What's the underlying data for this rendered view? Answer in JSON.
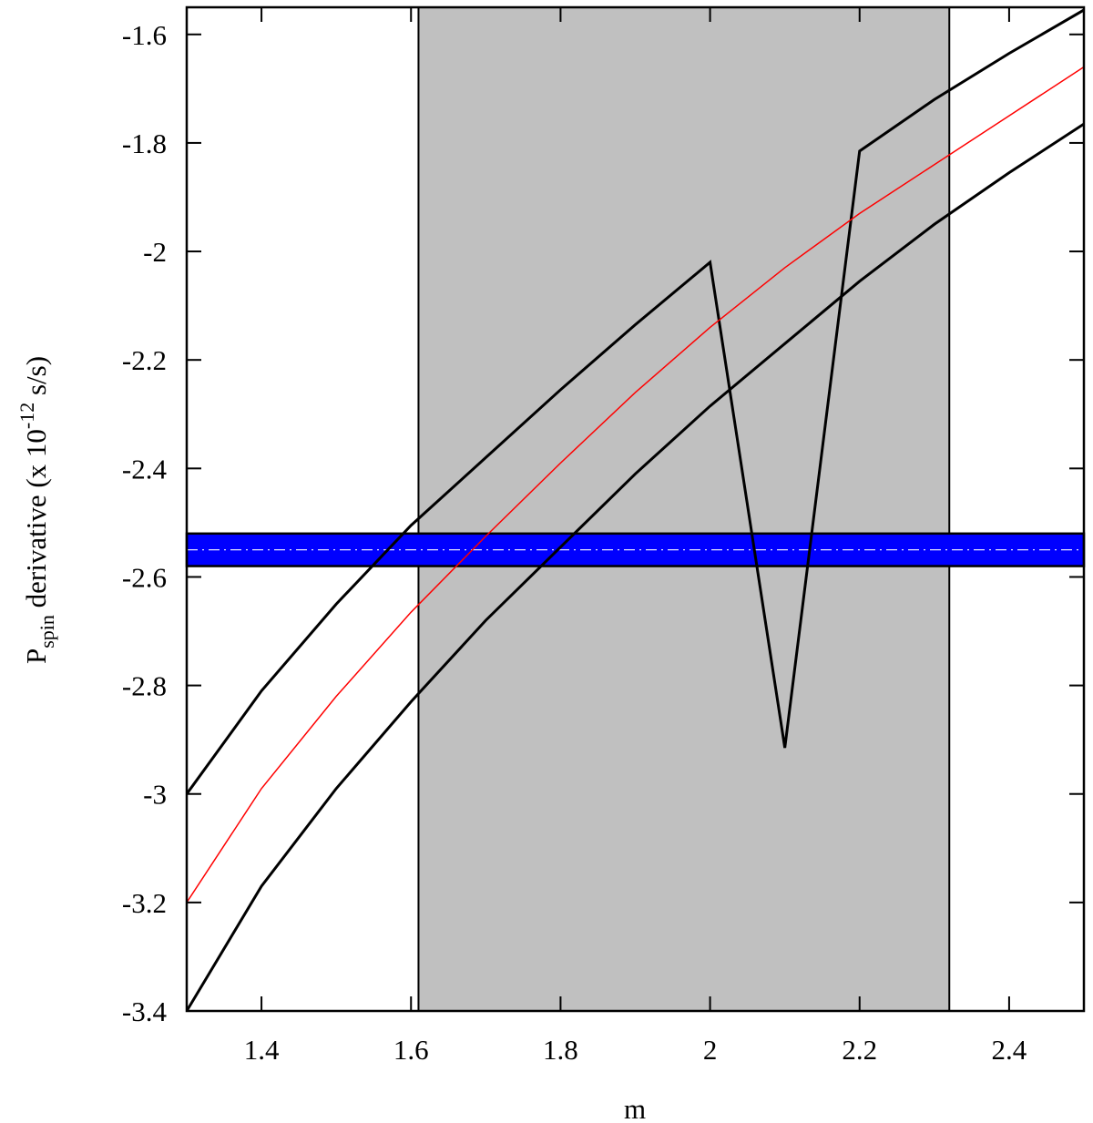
{
  "chart_data": {
    "type": "line",
    "xlabel": "m",
    "ylabel": {
      "main": "P",
      "sub": "spin",
      "mid": " derivative (x 10",
      "sup": "-12",
      "end": " s/s)"
    },
    "x": [
      1.3,
      1.4,
      1.5,
      1.6,
      1.7,
      1.8,
      1.9,
      2.0,
      2.1,
      2.2,
      2.3,
      2.4,
      2.5
    ],
    "series": [
      {
        "color": "#000000",
        "values": [
          -3.0,
          -2.81,
          -2.65,
          -2.505,
          -2.38,
          -2.255,
          -2.135,
          -2.02,
          -2.915,
          -1.815,
          -1.72,
          -1.635,
          -1.555
        ]
      },
      {
        "color": "#ff0000",
        "values": [
          -3.2,
          -2.99,
          -2.82,
          -2.665,
          -2.525,
          -2.39,
          -2.26,
          -2.14,
          -2.03,
          -1.93,
          -1.84,
          -1.75,
          -1.66
        ]
      },
      {
        "color": "#000000",
        "values": [
          -3.4,
          -3.17,
          -2.99,
          -2.83,
          -2.68,
          -2.545,
          -2.41,
          -2.285,
          -2.17,
          -2.055,
          -1.95,
          -1.855,
          -1.765
        ]
      }
    ],
    "x_band": {
      "range": [
        1.61,
        2.32
      ],
      "color": "#c0c0c0"
    },
    "y_band": {
      "range": [
        -2.58,
        -2.52
      ],
      "center": -2.55,
      "color": "#0000ff"
    },
    "xlim": [
      1.3,
      2.5
    ],
    "xticks": [
      1.4,
      1.6,
      1.8,
      2,
      2.2,
      2.4
    ],
    "ylim": [
      -3.4,
      -1.55
    ],
    "yticks": [
      -3.4,
      -3.2,
      -3,
      -2.8,
      -2.6,
      -2.4,
      -2.2,
      -2,
      -1.8,
      -1.6
    ]
  }
}
